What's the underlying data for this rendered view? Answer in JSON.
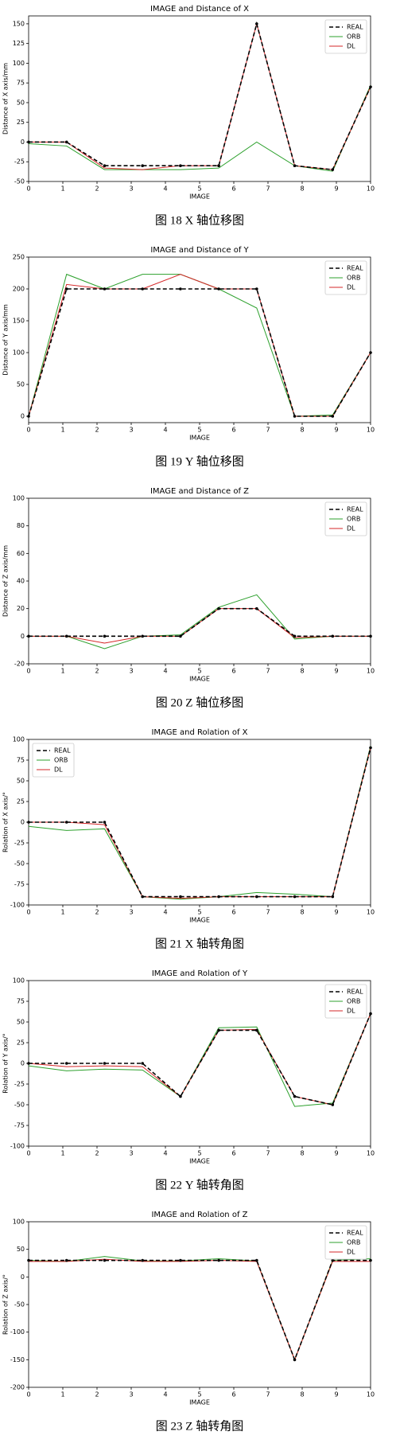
{
  "chart_data": [
    {
      "type": "line",
      "title": "IMAGE and Distance of X",
      "xlabel": "IMAGE",
      "ylabel": "Distance of X axis/mm",
      "caption": "图 18 X 轴位移图",
      "x": [
        0,
        1.11,
        2.22,
        3.33,
        4.44,
        5.56,
        6.67,
        7.78,
        8.89,
        10
      ],
      "xlim": [
        0,
        10
      ],
      "xticks": [
        0,
        1,
        2,
        3,
        4,
        5,
        6,
        7,
        8,
        9,
        10
      ],
      "ylim": [
        -50,
        160
      ],
      "yticks": [
        -50,
        -25,
        0,
        25,
        50,
        75,
        100,
        125,
        150
      ],
      "legend": "upper right",
      "series": [
        {
          "name": "REAL",
          "color": "#000000",
          "linestyle": "dashed",
          "values": [
            0,
            0,
            -30,
            -30,
            -30,
            -30,
            150,
            -30,
            -35,
            70
          ]
        },
        {
          "name": "ORB",
          "color": "#2ca02c",
          "linestyle": "solid",
          "values": [
            -2,
            -5,
            -35,
            -35,
            -35,
            -33,
            0,
            -30,
            -37,
            72
          ]
        },
        {
          "name": "DL",
          "color": "#d62728",
          "linestyle": "solid",
          "values": [
            0,
            0,
            -33,
            -35,
            -30,
            -30,
            150,
            -30,
            -35,
            70
          ]
        }
      ]
    },
    {
      "type": "line",
      "title": "IMAGE and Distance of Y",
      "xlabel": "IMAGE",
      "ylabel": "Distance of Y axis/mm",
      "caption": "图 19 Y 轴位移图",
      "x": [
        0,
        1.11,
        2.22,
        3.33,
        4.44,
        5.56,
        6.67,
        7.78,
        8.89,
        10
      ],
      "xlim": [
        0,
        10
      ],
      "xticks": [
        0,
        1,
        2,
        3,
        4,
        5,
        6,
        7,
        8,
        9,
        10
      ],
      "ylim": [
        -10,
        250
      ],
      "yticks": [
        0,
        50,
        100,
        150,
        200,
        250
      ],
      "legend": "upper right",
      "series": [
        {
          "name": "REAL",
          "color": "#000000",
          "linestyle": "dashed",
          "values": [
            0,
            200,
            200,
            200,
            200,
            200,
            200,
            0,
            0,
            100
          ]
        },
        {
          "name": "ORB",
          "color": "#2ca02c",
          "linestyle": "solid",
          "values": [
            0,
            223,
            200,
            223,
            223,
            200,
            170,
            0,
            2,
            100
          ]
        },
        {
          "name": "DL",
          "color": "#d62728",
          "linestyle": "solid",
          "values": [
            0,
            207,
            200,
            200,
            223,
            200,
            200,
            0,
            0,
            100
          ]
        }
      ]
    },
    {
      "type": "line",
      "title": "IMAGE and Distance of Z",
      "xlabel": "IMAGE",
      "ylabel": "Distance of Z axis/mm",
      "caption": "图 20 Z 轴位移图",
      "x": [
        0,
        1.11,
        2.22,
        3.33,
        4.44,
        5.56,
        6.67,
        7.78,
        8.89,
        10
      ],
      "xlim": [
        0,
        10
      ],
      "xticks": [
        0,
        1,
        2,
        3,
        4,
        5,
        6,
        7,
        8,
        9,
        10
      ],
      "ylim": [
        -20,
        100
      ],
      "yticks": [
        -20,
        0,
        20,
        40,
        60,
        80,
        100
      ],
      "legend": "upper right",
      "series": [
        {
          "name": "REAL",
          "color": "#000000",
          "linestyle": "dashed",
          "values": [
            0,
            0,
            0,
            0,
            0,
            20,
            20,
            0,
            0,
            0
          ]
        },
        {
          "name": "ORB",
          "color": "#2ca02c",
          "linestyle": "solid",
          "values": [
            0,
            0,
            -9,
            0,
            1,
            21,
            30,
            -2,
            0,
            0
          ]
        },
        {
          "name": "DL",
          "color": "#d62728",
          "linestyle": "solid",
          "values": [
            0,
            0,
            -5,
            0,
            0,
            20,
            20,
            -1,
            0,
            0
          ]
        }
      ]
    },
    {
      "type": "line",
      "title": "IMAGE and Rolation of X",
      "xlabel": "IMAGE",
      "ylabel": "Rolation of X axis/°",
      "caption": "图 21 X 轴转角图",
      "x": [
        0,
        1.11,
        2.22,
        3.33,
        4.44,
        5.56,
        6.67,
        7.78,
        8.89,
        10
      ],
      "xlim": [
        0,
        10
      ],
      "xticks": [
        0,
        1,
        2,
        3,
        4,
        5,
        6,
        7,
        8,
        9,
        10
      ],
      "ylim": [
        -100,
        100
      ],
      "yticks": [
        -100,
        -75,
        -50,
        -25,
        0,
        25,
        50,
        75,
        100
      ],
      "legend": "upper left",
      "series": [
        {
          "name": "REAL",
          "color": "#000000",
          "linestyle": "dashed",
          "values": [
            0,
            0,
            0,
            -90,
            -90,
            -90,
            -90,
            -90,
            -90,
            90
          ]
        },
        {
          "name": "ORB",
          "color": "#2ca02c",
          "linestyle": "solid",
          "values": [
            -5,
            -10,
            -8,
            -90,
            -93,
            -90,
            -85,
            -87,
            -90,
            92
          ]
        },
        {
          "name": "DL",
          "color": "#d62728",
          "linestyle": "solid",
          "values": [
            0,
            0,
            -3,
            -90,
            -92,
            -90,
            -90,
            -90,
            -90,
            90
          ]
        }
      ]
    },
    {
      "type": "line",
      "title": "IMAGE and Rolation of Y",
      "xlabel": "IMAGE",
      "ylabel": "Rolation of Y axis/°",
      "caption": "图 22 Y 轴转角图",
      "x": [
        0,
        1.11,
        2.22,
        3.33,
        4.44,
        5.56,
        6.67,
        7.78,
        8.89,
        10
      ],
      "xlim": [
        0,
        10
      ],
      "xticks": [
        0,
        1,
        2,
        3,
        4,
        5,
        6,
        7,
        8,
        9,
        10
      ],
      "ylim": [
        -100,
        100
      ],
      "yticks": [
        -100,
        -75,
        -50,
        -25,
        0,
        25,
        50,
        75,
        100
      ],
      "legend": "upper right",
      "series": [
        {
          "name": "REAL",
          "color": "#000000",
          "linestyle": "dashed",
          "values": [
            0,
            0,
            0,
            0,
            -40,
            40,
            40,
            -40,
            -50,
            60
          ]
        },
        {
          "name": "ORB",
          "color": "#2ca02c",
          "linestyle": "solid",
          "values": [
            -3,
            -9,
            -7,
            -8,
            -40,
            43,
            44,
            -52,
            -48,
            60
          ]
        },
        {
          "name": "DL",
          "color": "#d62728",
          "linestyle": "solid",
          "values": [
            0,
            -4,
            -3,
            -4,
            -40,
            40,
            41,
            -40,
            -50,
            60
          ]
        }
      ]
    },
    {
      "type": "line",
      "title": "IMAGE and Rolation of Z",
      "xlabel": "IMAGE",
      "ylabel": "Rolation of Z axis/°",
      "caption": "图 23 Z 轴转角图",
      "x": [
        0,
        1.11,
        2.22,
        3.33,
        4.44,
        5.56,
        6.67,
        7.78,
        8.89,
        10
      ],
      "xlim": [
        0,
        10
      ],
      "xticks": [
        0,
        1,
        2,
        3,
        4,
        5,
        6,
        7,
        8,
        9,
        10
      ],
      "ylim": [
        -200,
        100
      ],
      "yticks": [
        -200,
        -150,
        -100,
        -50,
        0,
        50,
        100
      ],
      "legend": "upper right",
      "series": [
        {
          "name": "REAL",
          "color": "#000000",
          "linestyle": "dashed",
          "values": [
            30,
            30,
            30,
            30,
            30,
            30,
            30,
            -150,
            30,
            30
          ]
        },
        {
          "name": "ORB",
          "color": "#2ca02c",
          "linestyle": "solid",
          "values": [
            30,
            28,
            37,
            29,
            29,
            33,
            29,
            -150,
            30,
            33
          ]
        },
        {
          "name": "DL",
          "color": "#d62728",
          "linestyle": "solid",
          "values": [
            28,
            28,
            32,
            28,
            28,
            30,
            28,
            -150,
            28,
            28
          ]
        }
      ]
    }
  ]
}
